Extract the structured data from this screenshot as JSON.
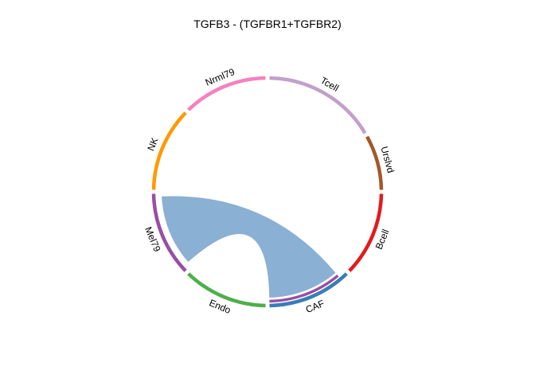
{
  "chart_data": {
    "type": "chord",
    "title": "TGFB3 - (TGFBR1+TGFBR2)",
    "sectors": [
      {
        "name": "Tcell",
        "color": "#c29fcc",
        "start_deg": 1,
        "end_deg": 59
      },
      {
        "name": "Urslvd",
        "color": "#a65628",
        "start_deg": 61,
        "end_deg": 89
      },
      {
        "name": "Bcell",
        "color": "#e41a1c",
        "start_deg": 91,
        "end_deg": 134
      },
      {
        "name": "CAF",
        "color": "#377eb8",
        "start_deg": 136,
        "end_deg": 179
      },
      {
        "name": "Endo",
        "color": "#4daf4a",
        "start_deg": 181,
        "end_deg": 224
      },
      {
        "name": "Mel79",
        "color": "#984ea3",
        "start_deg": 226,
        "end_deg": 269
      },
      {
        "name": "NK",
        "color": "#ff9900",
        "start_deg": 271,
        "end_deg": 314
      },
      {
        "name": "Nrml79",
        "color": "#f781bf",
        "start_deg": 316,
        "end_deg": 359
      }
    ],
    "links": [
      {
        "from": "Mel79",
        "to": "CAF",
        "from_deg": [
          228.5,
          267.5
        ],
        "to_deg": [
          140,
          179
        ],
        "color": "#8ab0d4"
      }
    ],
    "inner_tracks": [
      {
        "sector": "CAF",
        "color": "#984ea3",
        "start_deg": 140,
        "end_deg": 179
      }
    ]
  }
}
